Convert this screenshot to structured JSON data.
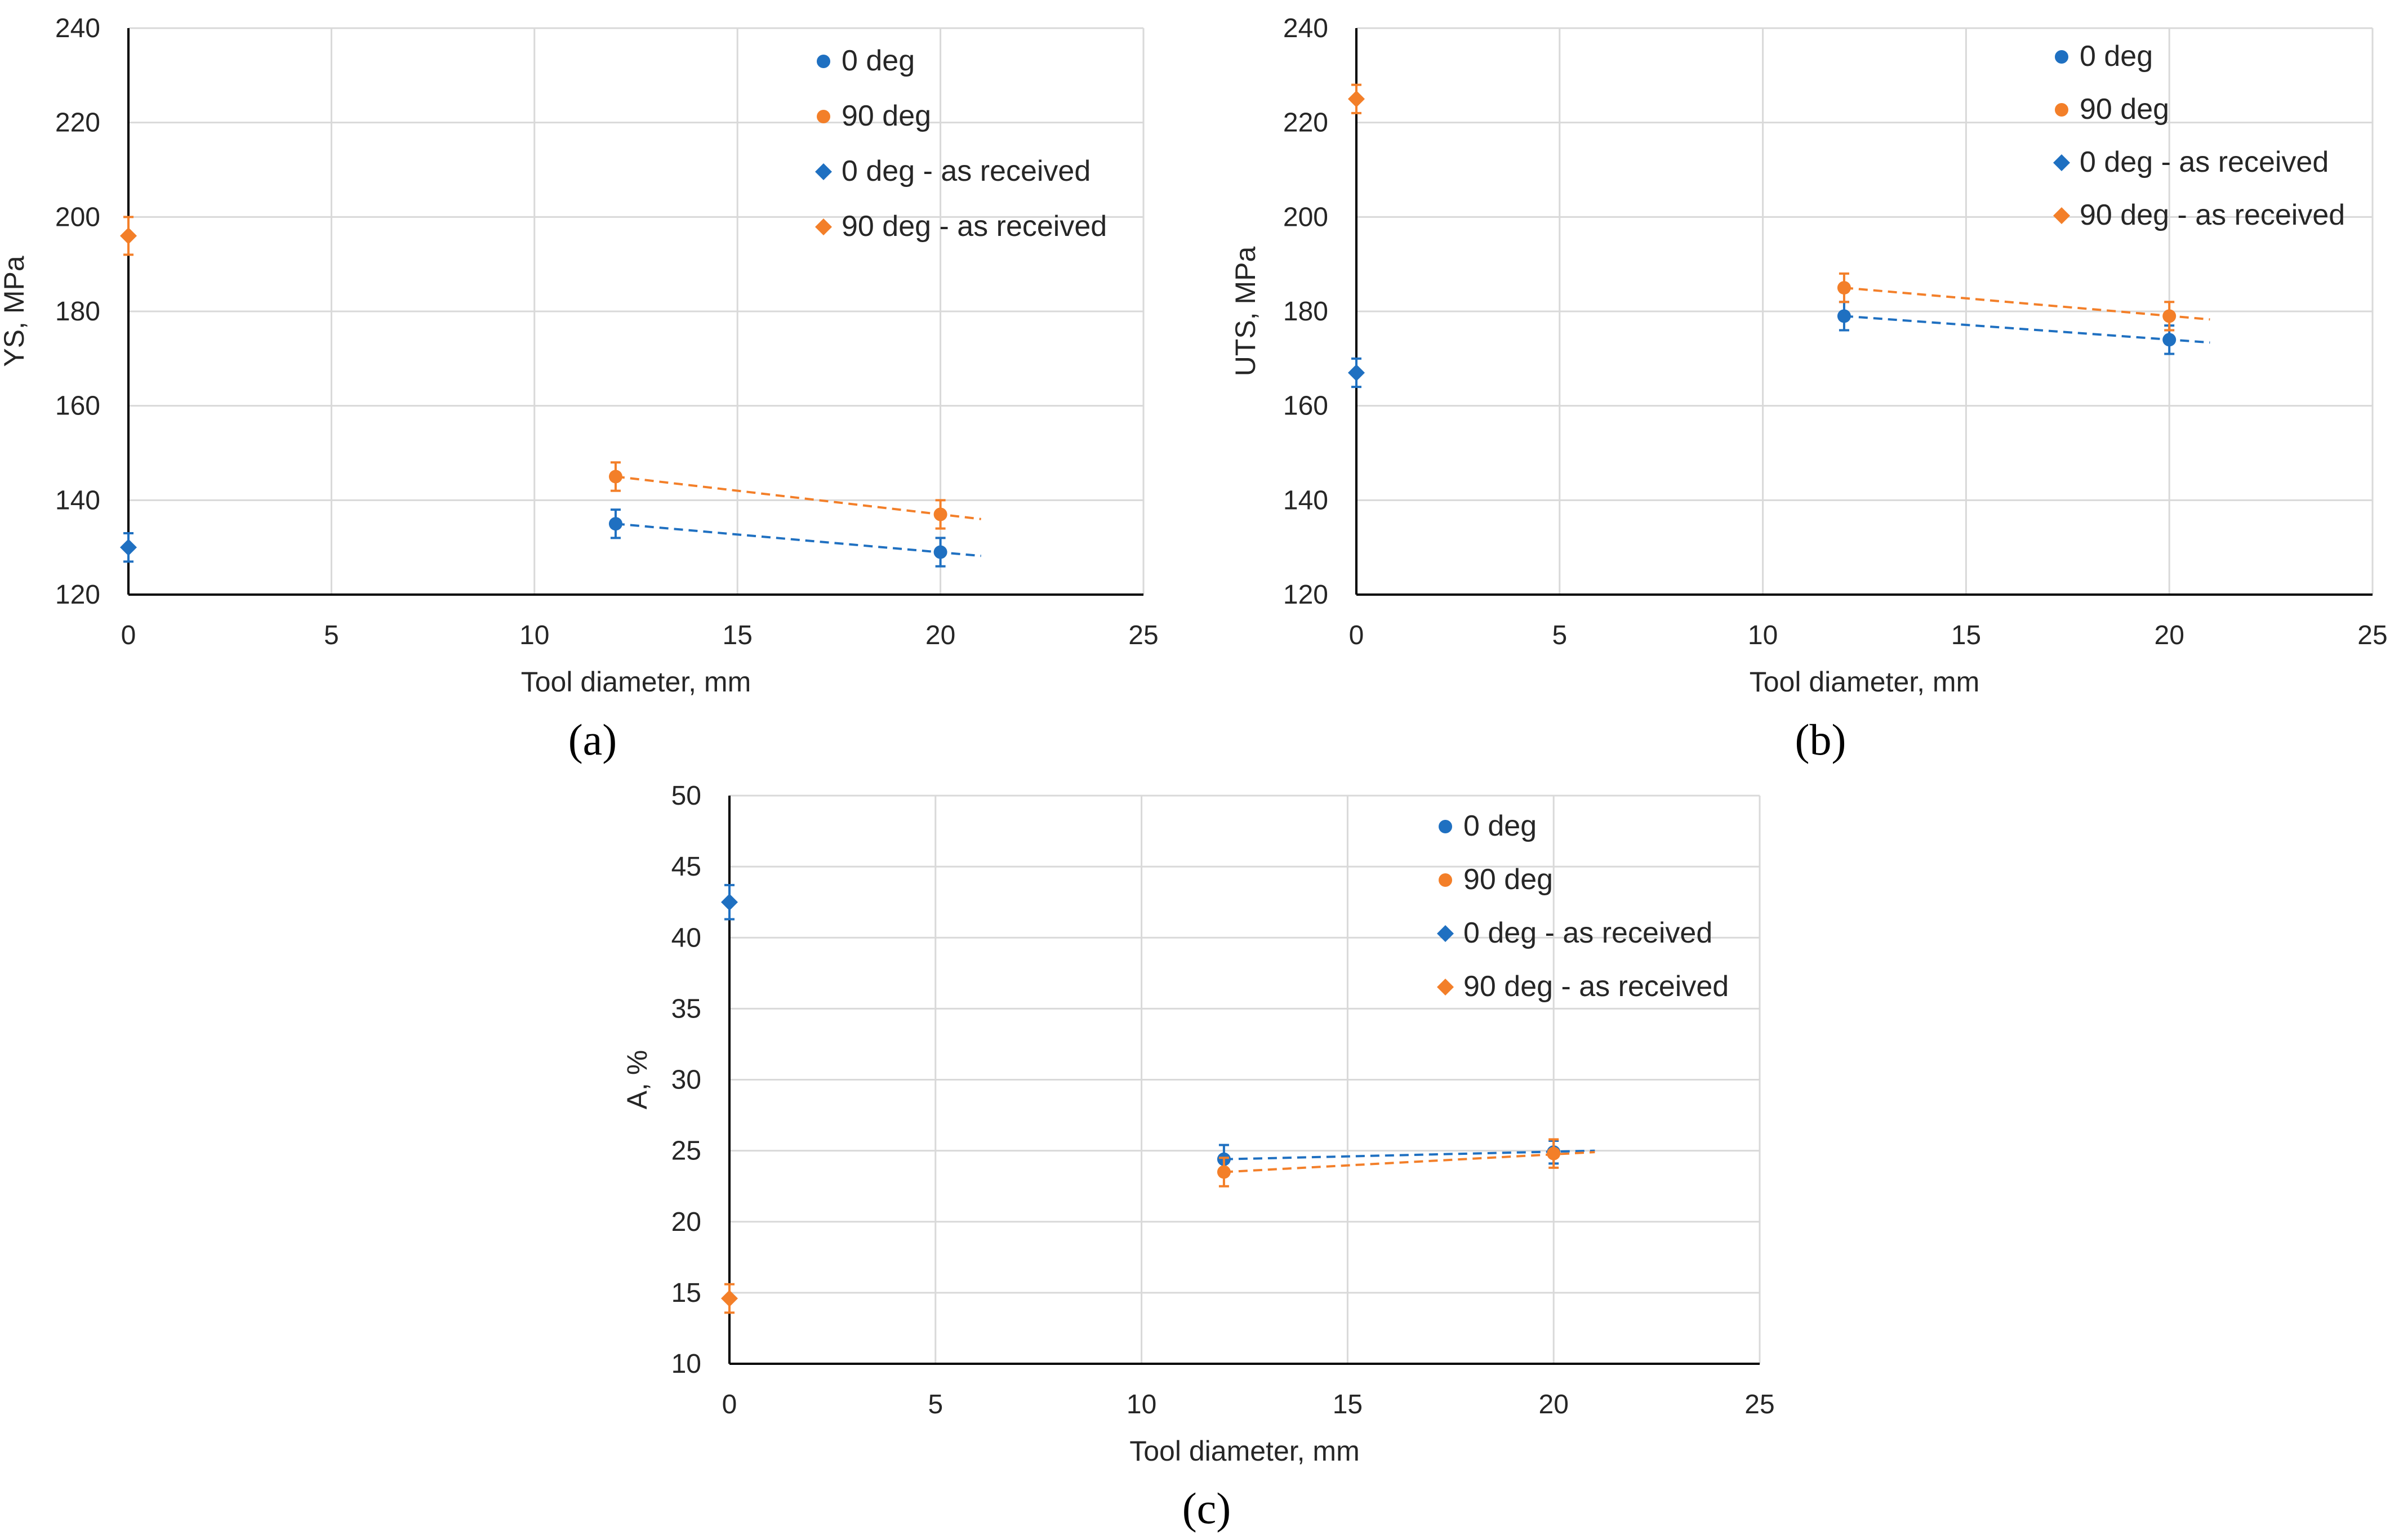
{
  "colors": {
    "blue": "#1f70c1",
    "orange": "#f37f29"
  },
  "legend": [
    "0 deg",
    "90 deg",
    "0 deg - as received",
    "90 deg - as received"
  ],
  "chart_data": [
    {
      "panel": "(a)",
      "type": "scatter",
      "xlabel": "Tool diameter,  mm",
      "ylabel": "YS,  MPa",
      "xlim": [
        0,
        25
      ],
      "ylim": [
        120,
        240
      ],
      "xticks": [
        0,
        5,
        10,
        15,
        20,
        25
      ],
      "yticks": [
        120,
        140,
        160,
        180,
        200,
        220,
        240
      ],
      "legend_position": "top-right",
      "series": [
        {
          "name": "0 deg",
          "marker": "circle",
          "color": "blue",
          "points": [
            [
              12,
              135
            ],
            [
              20,
              129
            ]
          ],
          "err": [
            3,
            3
          ],
          "trend": [
            [
              12,
              135
            ],
            [
              21,
              128.2
            ]
          ]
        },
        {
          "name": "90 deg",
          "marker": "circle",
          "color": "orange",
          "points": [
            [
              12,
              145
            ],
            [
              20,
              137
            ]
          ],
          "err": [
            3,
            3
          ],
          "trend": [
            [
              12,
              145
            ],
            [
              21,
              136
            ]
          ]
        },
        {
          "name": "0 deg - as received",
          "marker": "diamond",
          "color": "blue",
          "points": [
            [
              0,
              130
            ]
          ],
          "err": [
            3
          ]
        },
        {
          "name": "90 deg - as received",
          "marker": "diamond",
          "color": "orange",
          "points": [
            [
              0,
              196
            ]
          ],
          "err": [
            4
          ]
        }
      ]
    },
    {
      "panel": "(b)",
      "type": "scatter",
      "xlabel": "Tool diameter,  mm",
      "ylabel": "UTS,  MPa",
      "xlim": [
        0,
        25
      ],
      "ylim": [
        120,
        240
      ],
      "xticks": [
        0,
        5,
        10,
        15,
        20,
        25
      ],
      "yticks": [
        120,
        140,
        160,
        180,
        200,
        220,
        240
      ],
      "legend_position": "top-right",
      "series": [
        {
          "name": "0 deg",
          "marker": "circle",
          "color": "blue",
          "points": [
            [
              12,
              179
            ],
            [
              20,
              174
            ]
          ],
          "err": [
            3,
            3
          ],
          "trend": [
            [
              12,
              179
            ],
            [
              21,
              173.4
            ]
          ]
        },
        {
          "name": "90 deg",
          "marker": "circle",
          "color": "orange",
          "points": [
            [
              12,
              185
            ],
            [
              20,
              179
            ]
          ],
          "err": [
            3,
            3
          ],
          "trend": [
            [
              12,
              185
            ],
            [
              21,
              178.3
            ]
          ]
        },
        {
          "name": "0 deg - as received",
          "marker": "diamond",
          "color": "blue",
          "points": [
            [
              0,
              167
            ]
          ],
          "err": [
            3
          ]
        },
        {
          "name": "90 deg - as received",
          "marker": "diamond",
          "color": "orange",
          "points": [
            [
              0,
              225
            ]
          ],
          "err": [
            3
          ]
        }
      ]
    },
    {
      "panel": "(c)",
      "type": "scatter",
      "xlabel": "Tool diameter,  mm",
      "ylabel": "A, %",
      "xlim": [
        0,
        25
      ],
      "ylim": [
        10,
        50
      ],
      "xticks": [
        0,
        5,
        10,
        15,
        20,
        25
      ],
      "yticks": [
        10,
        15,
        20,
        25,
        30,
        35,
        40,
        45,
        50
      ],
      "legend_position": "top-right",
      "series": [
        {
          "name": "0 deg",
          "marker": "circle",
          "color": "blue",
          "points": [
            [
              12,
              24.4
            ],
            [
              20,
              24.9
            ]
          ],
          "err": [
            1,
            0.8
          ],
          "trend": [
            [
              12,
              24.4
            ],
            [
              21,
              25
            ]
          ]
        },
        {
          "name": "90 deg",
          "marker": "circle",
          "color": "orange",
          "points": [
            [
              12,
              23.5
            ],
            [
              20,
              24.8
            ]
          ],
          "err": [
            1,
            1
          ],
          "trend": [
            [
              12,
              23.5
            ],
            [
              21,
              24.9
            ]
          ]
        },
        {
          "name": "0 deg - as received",
          "marker": "diamond",
          "color": "blue",
          "points": [
            [
              0,
              42.5
            ]
          ],
          "err": [
            1.2
          ]
        },
        {
          "name": "90 deg - as received",
          "marker": "diamond",
          "color": "orange",
          "points": [
            [
              0,
              14.6
            ]
          ],
          "err": [
            1
          ]
        }
      ]
    }
  ]
}
